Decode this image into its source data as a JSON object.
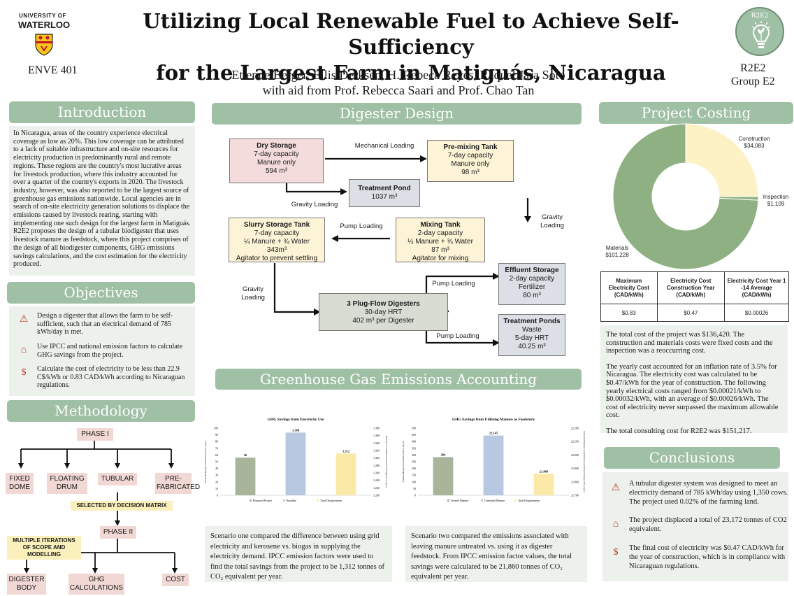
{
  "header": {
    "title_line1": "Utilizing Local Renewable Fuel to Achieve Self-Sufficiency",
    "title_line2": "for the Largest Farm in Matiguás, Nicaragua",
    "authors_line1": "Etienne Berger, Ellis Derksen, H. Rebeca Reyes, Raquel Jara Soto",
    "authors_line2": "with aid from Prof. Rebecca Saari and Prof. Chao Tan",
    "university_small": "UNIVERSITY OF",
    "university_name": "WATERLOO",
    "course": "ENVE 401",
    "badge": "R2E2",
    "group_line1": "R2E2",
    "group_line2": "Group E2"
  },
  "introduction": {
    "heading": "Introduction",
    "text": "In Nicaragua, areas of the country experience electrical coverage as low as 20%. This low coverage can be attributed to a lack of suitable infrastructure and on-site resources for electricity production in predominantly rural and remote regions. These regions are the country's most lucrative areas for livestock production, where this industry accounted for over a quarter of the country's exports in 2020. The livestock industry, however, was also reported to be the largest source of greenhouse gas emissions nationwide. Local agencies are in search of on-site electricity generation solutions to displace the emissions caused by livestock rearing, starting with implementing one such design for the largest farm in Matiguás. R2E2 proposes the design of a tubular biodigester that uses livestock manure as feedstock, where this project comprises of the design of all biodigester components, GHG emissions savings calculations, and the cost estimation for the electricity produced."
  },
  "objectives": {
    "heading": "Objectives",
    "items": [
      {
        "text": "Design a digester that allows the farm to be self-sufficient, such that an electrical demand of 785 kWh/day is met.",
        "icon": "warning-triangle-icon"
      },
      {
        "text": "Use IPCC and national emission factors to calculate GHG savings from the project.",
        "icon": "factory-icon"
      },
      {
        "text": "Calculate the cost of electricity to be less than 22.9 C$/kWh or 0.83 CAD/kWh according to Nicaraguan regulations.",
        "icon": "coins-icon"
      }
    ]
  },
  "methodology": {
    "heading": "Methodology",
    "phase1": "PHASE I",
    "options": [
      "FIXED\nDOME",
      "FLOATING\nDRUM",
      "TUBULAR",
      "PRE-\nFABRICATED"
    ],
    "decision": "SELECTED BY DECISION MATRIX",
    "phase2": "PHASE II",
    "iterations": "MULTIPLE ITERATIONS\nOF SCOPE AND MODELLING",
    "outputs": [
      "DIGESTER\nBODY",
      "GHG\nCALCULATIONS",
      "COST"
    ]
  },
  "digester": {
    "heading": "Digester Design",
    "dry_storage": {
      "title": "Dry Storage",
      "l1": "7-day capacity",
      "l2": "Manure only",
      "l3": "594 m³"
    },
    "premix": {
      "title": "Pre-mixing Tank",
      "l1": "7-day capacity",
      "l2": "Manure only",
      "l3": "98 m³"
    },
    "treatment_pond": {
      "title": "Treatment Pond",
      "l1": "1037 m³"
    },
    "slurry": {
      "title": "Slurry Storage Tank",
      "l1": "7-day capacity",
      "l2": "¼ Manure + ¾ Water",
      "l3": "343m³",
      "l4": "Agitator to prevent settling"
    },
    "mixing": {
      "title": "Mixing Tank",
      "l1": "2-day capacity",
      "l2": "¼ Manure + ¾ Water",
      "l3": "87 m³",
      "l4": "Agitator for mixing"
    },
    "effluent": {
      "title": "Effluent Storage",
      "l1": "2-day capacity",
      "l2": "Fertilizer",
      "l3": "80 m³"
    },
    "plugflow": {
      "title": "3 Plug-Flow Digesters",
      "l1": "30-day HRT",
      "l2": "402 m³ per Digester"
    },
    "ponds": {
      "title": "Treatment Ponds",
      "l1": "Waste",
      "l2": "5-day HRT",
      "l3": "40.25 m³"
    },
    "labels": {
      "mechanical": "Mechanical Loading",
      "gravity1": "Gravity Loading",
      "gravity2": "Gravity\nLoading",
      "pump1": "Pump Loading",
      "gravity3": "Gravity\nLoading",
      "pump2": "Pump Loading",
      "pump3": "Pump Loading"
    }
  },
  "ghg": {
    "heading": "Greenhouse Gas Emissions Accounting",
    "scenario1": "Scenario one compared the difference between using grid electricity and kerosene vs. biogas in supplying the electricity demand. IPCC emission factors were used to find the total savings from the project to be 1,312 tonnes of CO₂ equivalent per year.",
    "scenario2": "Scenario two compared the emissions associated with leaving manure untreated vs. using it as digester feedstock. From IPCC emission factor values, the total savings were calculated to be 21,860 tonnes of CO₂ equivalent per year."
  },
  "chart_data": [
    {
      "type": "bar",
      "title": "GHG Savings from Electricity Use",
      "categories": [
        "Proposed Project",
        "Baseline",
        "Total Displacement"
      ],
      "values": [
        56,
        1368,
        1312
      ],
      "data_labels": [
        "56",
        "1,368",
        "1,312"
      ],
      "ylabel_left": "Proposed Biogas Contribution (CO₂ eq/yr)",
      "ylabel_right": "Baseline Contribution and Total Savings (CO₂ eq/yr)",
      "ylim_left": [
        0,
        100
      ],
      "ylim_right": [
        1200,
        1380
      ],
      "left_ticks": [
        "0",
        "10",
        "20",
        "30",
        "40",
        "50",
        "60",
        "70",
        "80",
        "90",
        "100"
      ],
      "right_ticks": [
        "1,200",
        "1,220",
        "1,240",
        "1,260",
        "1,280",
        "1,300",
        "1,320",
        "1,340",
        "1,360",
        "1,380"
      ],
      "legend": [
        "Proposed Project",
        "Baseline",
        "Total Displacement"
      ],
      "colors": [
        "#a8b59a",
        "#b8c8e0",
        "#fbe9a8"
      ]
    },
    {
      "type": "bar",
      "title": "GHG Savings from Utilizing Manure as Feedstock",
      "categories": [
        "Treated Manure",
        "Untreated Manure",
        "Total Displacement"
      ],
      "values": [
        284,
        22145,
        21860
      ],
      "data_labels": [
        "284",
        "22,145",
        "21,860"
      ],
      "ylabel_left": "Treated Manure Contribution (CO₂ eq/yr)",
      "ylabel_right": "Untreated Manure Contribution and Total Savings (CO₂ eq/yr)",
      "ylim_left": [
        0,
        500
      ],
      "ylim_right": [
        21700,
        22200
      ],
      "left_ticks": [
        "0",
        "50",
        "100",
        "150",
        "200",
        "250",
        "300",
        "350",
        "400",
        "450",
        "500"
      ],
      "right_ticks": [
        "21,700",
        "21,800",
        "21,900",
        "22,000",
        "22,100",
        "22,200"
      ],
      "legend": [
        "Treated Manure",
        "Untreated Manure",
        "Total Displacement"
      ],
      "colors": [
        "#a8b59a",
        "#b8c8e0",
        "#fbe9a8"
      ]
    },
    {
      "type": "pie",
      "title": "",
      "categories": [
        "Construction",
        "Inspection",
        "Materials"
      ],
      "values": [
        34083,
        1109,
        101228
      ],
      "data_labels": [
        "$34,083",
        "$1,109",
        "$101,228"
      ],
      "colors": [
        "#fdf1c6",
        "#8fb082",
        "#8fb082"
      ]
    }
  ],
  "costing": {
    "heading": "Project Costing",
    "table_headers": [
      "Maximum Electricity Cost (CAD/kWh)",
      "Electricity Cost Construction Year (CAD/kWh)",
      "Electricity Cost Year 1 -14 Average (CAD/kWh)"
    ],
    "table_values": [
      "$0.83",
      "$0.47",
      "$0.00026"
    ],
    "p1": "The total cost of the project was $136,420. The construction and materials costs were fixed costs and the inspection was a reoccurring cost.",
    "p2": "The yearly cost accounted for an inflation rate of 3.5% for Nicaragua. The electricity cost was calculated to be $0.47/kWh for the year of construction. The following yearly electrical costs ranged from $0.00021/kWh to  $0.00032/kWh, with an average of $0.00026/kWh. The cost of electricity never surpassed the maximum allowable cost.",
    "p3": "The total consulting cost for R2E2 was $151,217.",
    "pie_labels": {
      "construction": "Construction",
      "construction_val": "$34,083",
      "inspection": "Inspection",
      "inspection_val": "$1,109",
      "materials": "Materials",
      "materials_val": "$101,228"
    }
  },
  "conclusions": {
    "heading": "Conclusions",
    "items": [
      {
        "text": "A tubular digester system was designed to meet an electricity demand of 785 kWh/day using 1,350 cows. The project used 0.02% of the farming land.",
        "icon": "warning-triangle-icon"
      },
      {
        "text": "The project displaced a total of 23,172  tonnes of CO2 equivalent.",
        "icon": "factory-icon"
      },
      {
        "text": "The final cost of electricity was $0.47 CAD/kWh for the year of construction, which is in compliance with Nicaraguan regulations.",
        "icon": "coins-icon"
      }
    ]
  },
  "colors": {
    "section_header": "#9fc0a5",
    "panel": "#edf1ec",
    "accent_red": "#c0392b"
  }
}
